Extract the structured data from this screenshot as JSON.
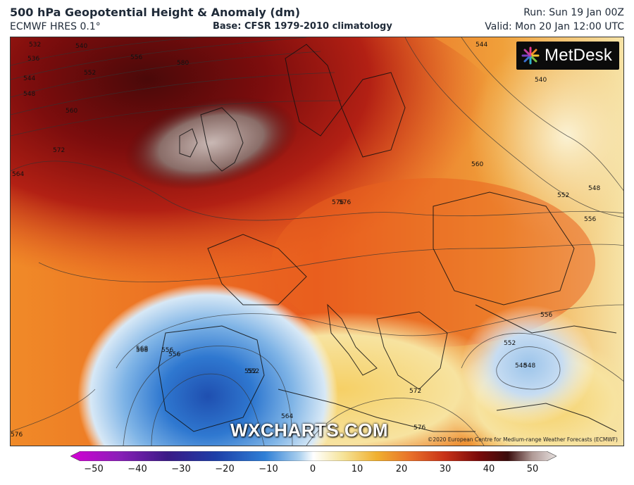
{
  "header": {
    "title": "500 hPa Geopotential Height & Anomaly (dm)",
    "subtitle": "ECMWF HRES 0.1°",
    "base": "Base: CFSR 1979-2010 climatology",
    "run": "Run: Sun 19 Jan 00Z",
    "valid": "Valid: Mon 20 Jan 12:00 UTC"
  },
  "logo": {
    "text": "MetDesk",
    "icon": "metdesk-star-icon"
  },
  "watermark": "WXCHARTS.COM",
  "copyright": "©2020 European Centre for Medium-range Weather Forecasts (ECMWF)",
  "contour_labels": [
    "532",
    "536",
    "540",
    "544",
    "548",
    "552",
    "556",
    "560",
    "564",
    "568",
    "572",
    "576",
    "580",
    "544",
    "540",
    "548",
    "552",
    "556",
    "560",
    "576",
    "548",
    "552",
    "556",
    "556",
    "552",
    "568",
    "556",
    "552",
    "548",
    "572",
    "564",
    "576",
    "576"
  ],
  "colorbar": {
    "ticks": [
      "−50",
      "−40",
      "−30",
      "−20",
      "−10",
      "0",
      "10",
      "20",
      "30",
      "40",
      "50"
    ],
    "colors": [
      "#d400d4",
      "#8a1fb8",
      "#3a1a86",
      "#1d3fa8",
      "#2f7fd6",
      "#a9cfee",
      "#ffffff",
      "#f6e49a",
      "#f0b030",
      "#e8702a",
      "#c83218",
      "#7a0a0a",
      "#3a0c0c",
      "#b09a96",
      "#e6e0df"
    ]
  }
}
